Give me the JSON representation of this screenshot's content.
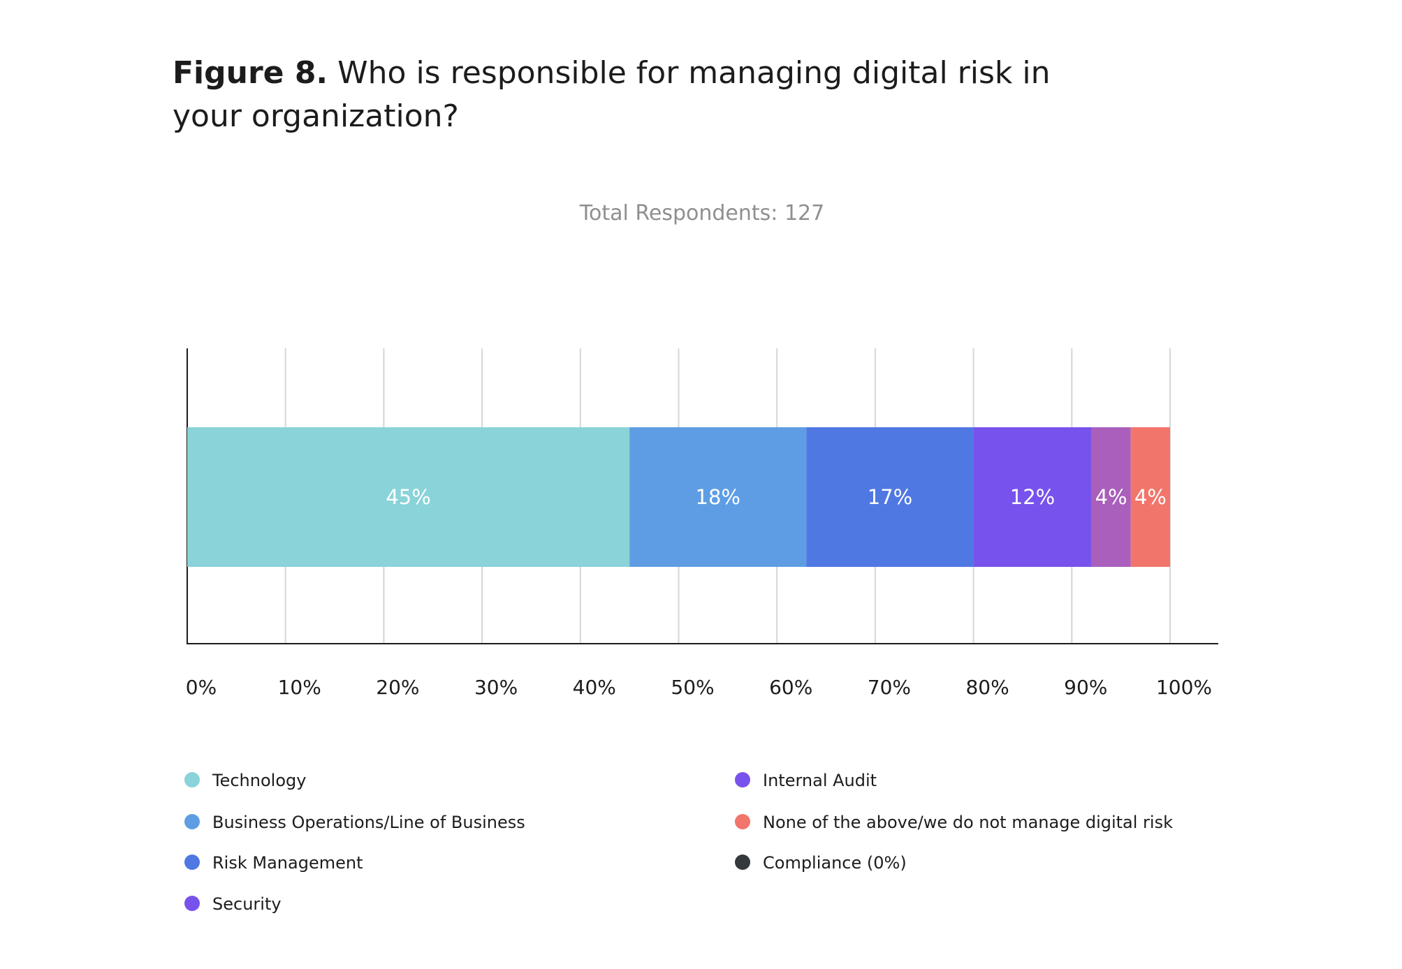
{
  "chart_data": {
    "type": "bar",
    "orientation": "horizontal-stacked",
    "title_prefix": "Figure 8.",
    "title": "Who is responsible for managing digital risk in your organization?",
    "subtitle": "Total Respondents: 127",
    "xlabel": "",
    "ylabel": "",
    "xlim": [
      0,
      100
    ],
    "x_ticks": [
      "0%",
      "10%",
      "20%",
      "30%",
      "40%",
      "50%",
      "60%",
      "70%",
      "80%",
      "90%",
      "100%"
    ],
    "grid": true,
    "legend_position": "bottom",
    "series": [
      {
        "name": "Technology",
        "value": 45,
        "label": "45%",
        "color": "#89D3D9"
      },
      {
        "name": "Business Operations/Line of Business",
        "value": 18,
        "label": "18%",
        "color": "#5E9DE3"
      },
      {
        "name": "Risk Management",
        "value": 17,
        "label": "17%",
        "color": "#5078E3"
      },
      {
        "name": "Security",
        "value": 12,
        "label": "12%",
        "color": "#7852EC"
      },
      {
        "name": "Internal Audit",
        "value": 4,
        "label": "4%",
        "color": "#A95FBB"
      },
      {
        "name": "None of the above/we do not manage digital risk",
        "value": 4,
        "label": "4%",
        "color": "#F2756B"
      },
      {
        "name": "Compliance (0%)",
        "value": 0,
        "label": "",
        "color": "#35393D"
      }
    ],
    "legend_order": [
      0,
      1,
      2,
      3,
      4,
      5,
      6
    ],
    "legend_dot_colors": [
      "#89D3D9",
      "#5E9DE3",
      "#5078E3",
      "#7852EC",
      "#7852EC",
      "#F2756B",
      "#35393D"
    ]
  }
}
